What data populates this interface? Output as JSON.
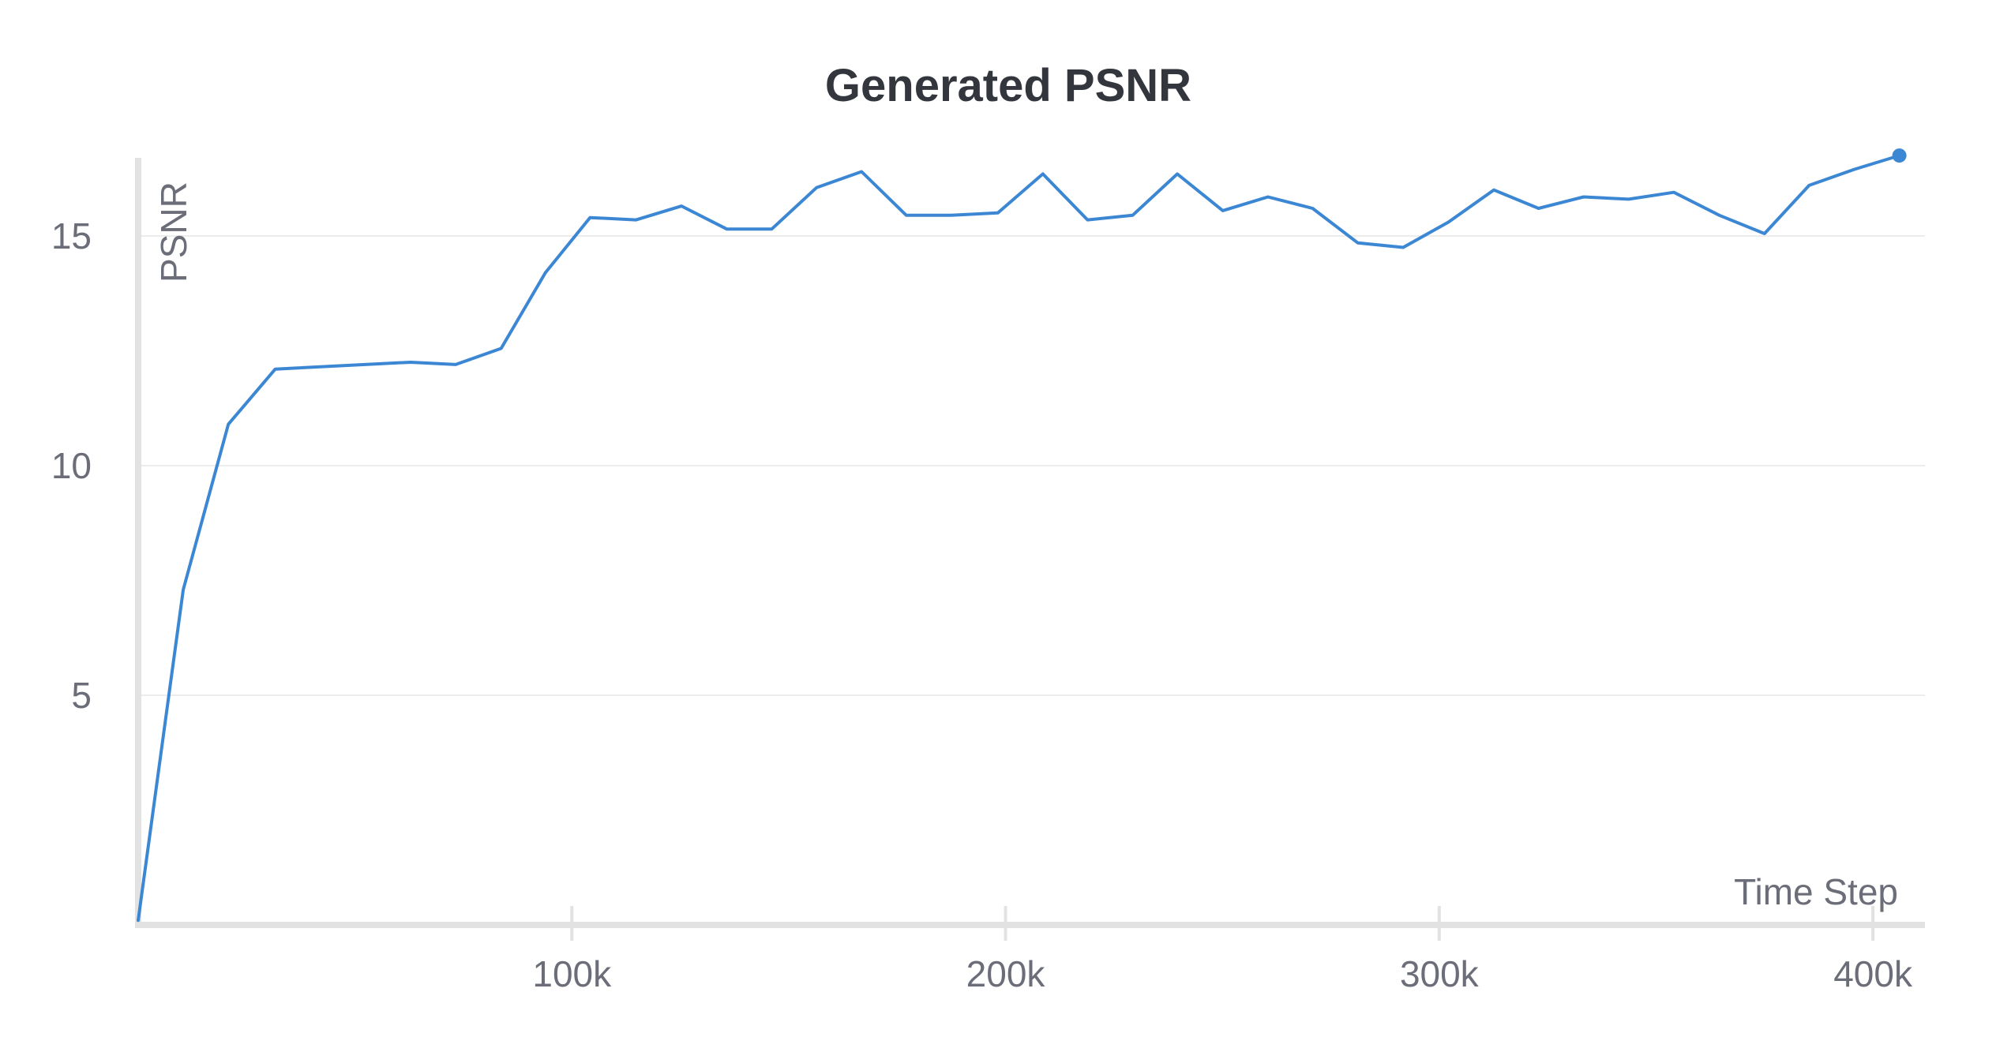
{
  "chart_data": {
    "type": "line",
    "title": "Generated PSNR",
    "xlabel": "Time Step",
    "ylabel": "PSNR",
    "xlim": [
      0,
      412000
    ],
    "ylim": [
      0,
      16.7
    ],
    "x_ticks": [
      {
        "value": 100000,
        "label": "100k"
      },
      {
        "value": 200000,
        "label": "200k"
      },
      {
        "value": 300000,
        "label": "300k"
      },
      {
        "value": 400000,
        "label": "400k"
      }
    ],
    "y_ticks": [
      {
        "value": 5,
        "label": "5"
      },
      {
        "value": 10,
        "label": "10"
      },
      {
        "value": 15,
        "label": "15"
      }
    ],
    "grid": true,
    "legend": "none",
    "series": [
      {
        "color": "#3b87d4",
        "marker_last_point": true,
        "x": [
          0,
          10400,
          20800,
          31600,
          52300,
          62800,
          73200,
          83700,
          93900,
          104200,
          114800,
          125300,
          135700,
          146100,
          156400,
          166800,
          177100,
          187500,
          198200,
          208600,
          218900,
          229300,
          239600,
          250100,
          260500,
          270800,
          281200,
          291700,
          302100,
          312600,
          322900,
          333300,
          343700,
          354100,
          364600,
          375000,
          385300,
          395700,
          406100
        ],
        "y": [
          0.1,
          7.3,
          10.9,
          12.1,
          12.2,
          12.25,
          12.2,
          12.55,
          14.2,
          15.4,
          15.35,
          15.65,
          15.15,
          15.15,
          16.05,
          16.4,
          15.45,
          15.45,
          15.5,
          16.35,
          15.35,
          15.45,
          16.35,
          15.55,
          15.85,
          15.6,
          14.85,
          14.75,
          15.3,
          16.0,
          15.6,
          15.85,
          15.8,
          15.95,
          15.45,
          15.05,
          16.1,
          16.45,
          16.75
        ]
      }
    ]
  }
}
